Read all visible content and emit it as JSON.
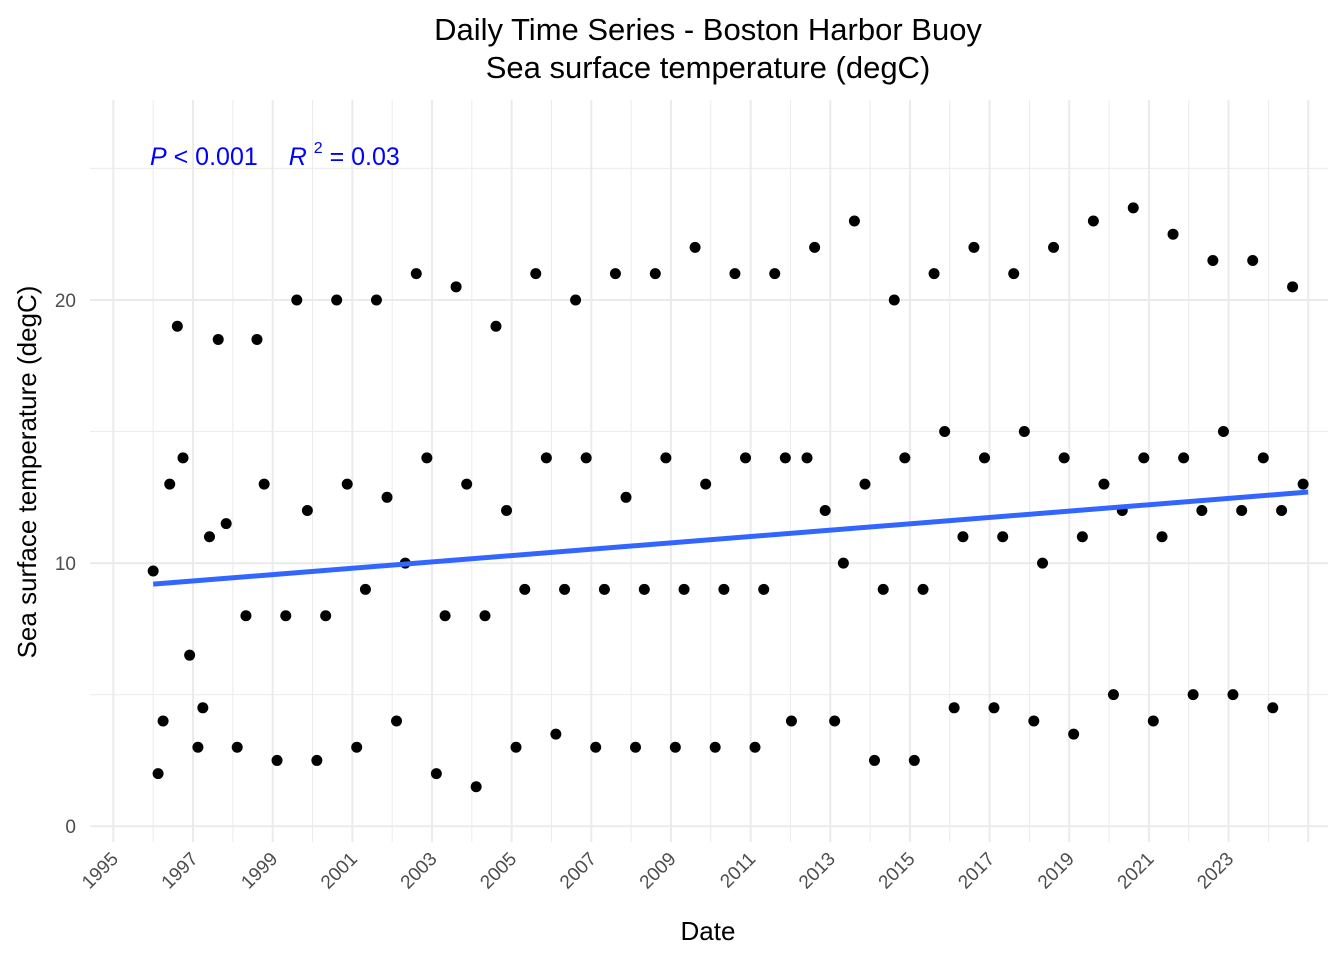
{
  "chart_data": {
    "type": "scatter",
    "title": "Daily Time Series - Boston Harbor Buoy",
    "subtitle": "Sea surface temperature (degC)",
    "xlabel": "Date",
    "ylabel": "Sea surface temperature (degC)",
    "xlim": [
      "1994-06-01",
      "2025-07-01"
    ],
    "ylim": [
      -0.6,
      27.6
    ],
    "y_ticks": [
      0,
      10,
      20
    ],
    "x_ticks": [
      "1995",
      "1997",
      "1999",
      "2001",
      "2003",
      "2005",
      "2007",
      "2009",
      "2011",
      "2013",
      "2015",
      "2017",
      "2019",
      "2021",
      "2023"
    ],
    "grid": true,
    "legend": "none",
    "point_color": "#000000",
    "trend_color": "#3366FF",
    "annotation": {
      "p_symbol": "P",
      "p_text": " < 0.001",
      "r_symbol": "R",
      "r_sup": "2",
      "r_text": " = 0.03",
      "color": "#0000FF"
    },
    "series": [
      {
        "values_description": "daily observations",
        "x": [
          "1996-01-01",
          "1996-02-15",
          "1996-04-01",
          "1996-06-01",
          "1996-08-10",
          "1996-10-01",
          "1996-12-01",
          "1997-02-15",
          "1997-04-01",
          "1997-06-01",
          "1997-08-20",
          "1997-11-01",
          "1998-02-10",
          "1998-05-01",
          "1998-08-10",
          "1998-10-15",
          "1999-02-10",
          "1999-05-01",
          "1999-08-10",
          "1999-11-15",
          "2000-02-10",
          "2000-05-01",
          "2000-08-10",
          "2000-11-15",
          "2001-02-10",
          "2001-05-01",
          "2001-08-10",
          "2001-11-15",
          "2002-02-10",
          "2002-05-01",
          "2002-08-10",
          "2002-11-15",
          "2003-02-10",
          "2003-05-01",
          "2003-08-10",
          "2003-11-15",
          "2004-02-10",
          "2004-05-01",
          "2004-08-10",
          "2004-11-15",
          "2005-02-10",
          "2005-05-01",
          "2005-08-10",
          "2005-11-15",
          "2006-02-10",
          "2006-05-01",
          "2006-08-10",
          "2006-11-15",
          "2007-02-10",
          "2007-05-01",
          "2007-08-10",
          "2007-11-15",
          "2008-02-10",
          "2008-05-01",
          "2008-08-10",
          "2008-11-15",
          "2009-02-10",
          "2009-05-01",
          "2009-08-10",
          "2009-11-15",
          "2010-02-10",
          "2010-05-01",
          "2010-08-10",
          "2010-11-15",
          "2011-02-10",
          "2011-05-01",
          "2011-08-10",
          "2011-11-15",
          "2012-01-10",
          "2012-06-01",
          "2012-08-10",
          "2012-11-15",
          "2013-02-10",
          "2013-05-01",
          "2013-08-10",
          "2013-11-15",
          "2014-02-10",
          "2014-05-01",
          "2014-08-10",
          "2014-11-15",
          "2015-02-10",
          "2015-05-01",
          "2015-08-10",
          "2015-11-15",
          "2016-02-10",
          "2016-05-01",
          "2016-08-10",
          "2016-11-15",
          "2017-02-10",
          "2017-05-01",
          "2017-08-10",
          "2017-11-15",
          "2018-02-10",
          "2018-05-01",
          "2018-08-10",
          "2018-11-15",
          "2019-02-10",
          "2019-05-01",
          "2019-08-10",
          "2019-11-15",
          "2020-02-10",
          "2020-05-01",
          "2020-08-10",
          "2020-11-15",
          "2021-02-10",
          "2021-05-01",
          "2021-08-10",
          "2021-11-15",
          "2022-02-10",
          "2022-05-01",
          "2022-08-10",
          "2022-11-15",
          "2023-02-10",
          "2023-05-01",
          "2023-08-10",
          "2023-11-15",
          "2024-02-10",
          "2024-05-01",
          "2024-08-10",
          "2024-11-15"
        ],
        "y": [
          9.7,
          2.0,
          4.0,
          13.0,
          19.0,
          14.0,
          6.5,
          3.0,
          4.5,
          11.0,
          18.5,
          11.5,
          3.0,
          8.0,
          18.5,
          13.0,
          2.5,
          8.0,
          20.0,
          12.0,
          2.5,
          8.0,
          20.0,
          13.0,
          3.0,
          9.0,
          20.0,
          12.5,
          4.0,
          10.0,
          21.0,
          14.0,
          2.0,
          8.0,
          20.5,
          13.0,
          1.5,
          8.0,
          19.0,
          12.0,
          3.0,
          9.0,
          21.0,
          14.0,
          3.5,
          9.0,
          20.0,
          14.0,
          3.0,
          9.0,
          21.0,
          12.5,
          3.0,
          9.0,
          21.0,
          14.0,
          3.0,
          9.0,
          22.0,
          13.0,
          3.0,
          9.0,
          21.0,
          14.0,
          3.0,
          9.0,
          21.0,
          14.0,
          4.0,
          14.0,
          22.0,
          12.0,
          4.0,
          10.0,
          23.0,
          13.0,
          2.5,
          9.0,
          20.0,
          14.0,
          2.5,
          9.0,
          21.0,
          15.0,
          4.5,
          11.0,
          22.0,
          14.0,
          4.5,
          11.0,
          21.0,
          15.0,
          4.0,
          10.0,
          22.0,
          14.0,
          3.5,
          11.0,
          23.0,
          13.0,
          5.0,
          12.0,
          23.5,
          14.0,
          4.0,
          11.0,
          22.5,
          14.0,
          5.0,
          12.0,
          21.5,
          15.0,
          5.0,
          12.0,
          21.5,
          14.0,
          4.5,
          12.0,
          20.5,
          13.0
        ]
      }
    ],
    "trend": {
      "x": [
        "1996-01-01",
        "2024-12-31"
      ],
      "y": [
        9.2,
        12.7
      ]
    }
  }
}
